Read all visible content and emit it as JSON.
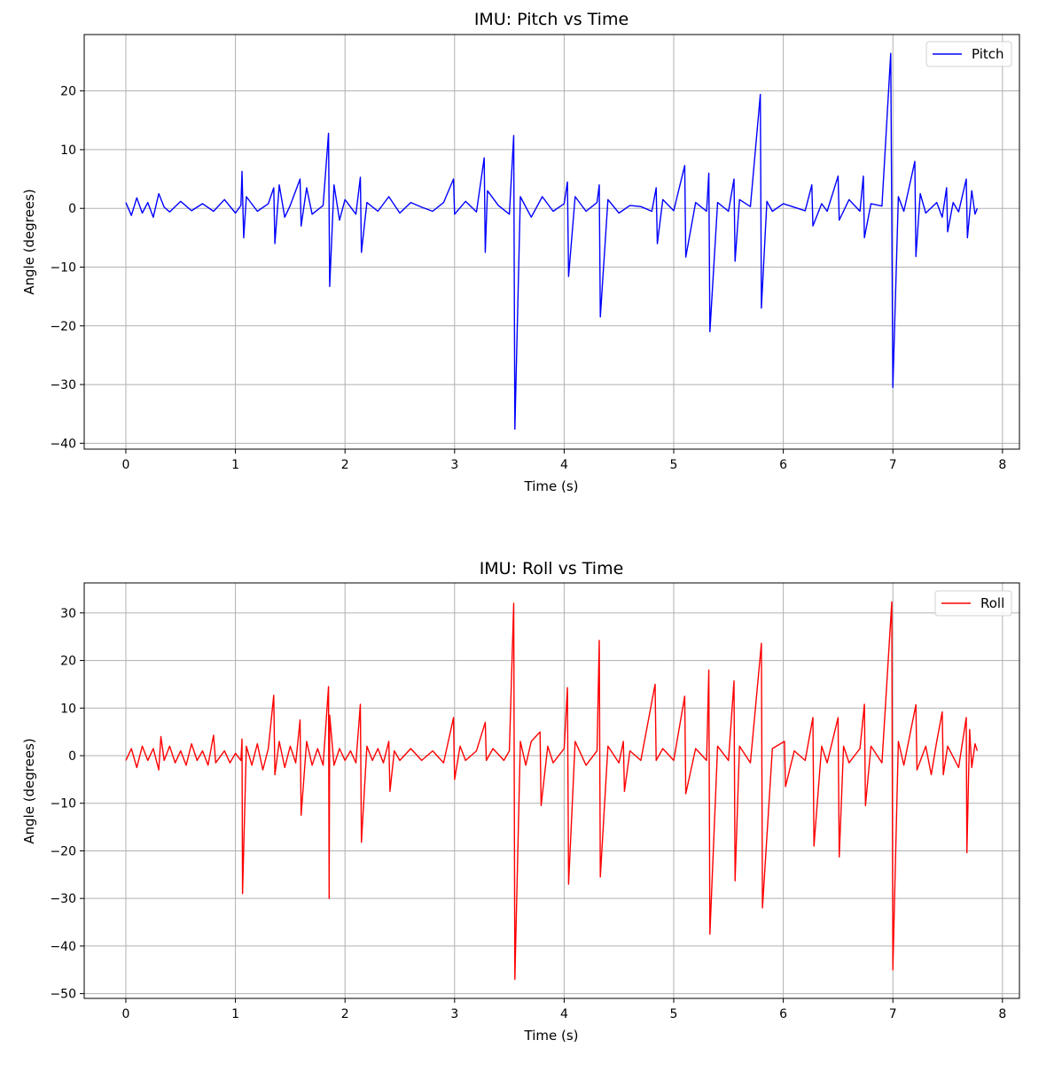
{
  "chart_data": [
    {
      "type": "line",
      "title": "IMU: Pitch vs Time",
      "xlabel": "Time (s)",
      "ylabel": "Angle (degrees)",
      "xlim": [
        -0.38,
        8.155
      ],
      "ylim": [
        -41,
        29.6
      ],
      "xticks": [
        0,
        1,
        2,
        3,
        4,
        5,
        6,
        7,
        8
      ],
      "yticks": [
        -40,
        -30,
        -20,
        -10,
        0,
        10,
        20
      ],
      "grid": true,
      "legend": "top-right",
      "series": [
        {
          "name": "Pitch",
          "color": "#0000ff",
          "points": [
            [
              0,
              1
            ],
            [
              0.05,
              -1.2
            ],
            [
              0.1,
              1.8
            ],
            [
              0.15,
              -0.8
            ],
            [
              0.2,
              1
            ],
            [
              0.25,
              -1.5
            ],
            [
              0.3,
              2.5
            ],
            [
              0.35,
              0.2
            ],
            [
              0.4,
              -0.6
            ],
            [
              0.5,
              1.2
            ],
            [
              0.6,
              -0.4
            ],
            [
              0.7,
              0.8
            ],
            [
              0.8,
              -0.5
            ],
            [
              0.9,
              1.5
            ],
            [
              1.0,
              -0.8
            ],
            [
              1.05,
              0.5
            ],
            [
              1.06,
              6.3
            ],
            [
              1.075,
              -5
            ],
            [
              1.1,
              2
            ],
            [
              1.2,
              -0.5
            ],
            [
              1.3,
              0.8
            ],
            [
              1.35,
              3.5
            ],
            [
              1.36,
              -6
            ],
            [
              1.4,
              4
            ],
            [
              1.45,
              -1.5
            ],
            [
              1.5,
              0.5
            ],
            [
              1.59,
              5
            ],
            [
              1.6,
              -3
            ],
            [
              1.65,
              3.5
            ],
            [
              1.7,
              -1
            ],
            [
              1.8,
              0.5
            ],
            [
              1.85,
              12.8
            ],
            [
              1.86,
              -13.3
            ],
            [
              1.9,
              4
            ],
            [
              1.95,
              -2
            ],
            [
              2.0,
              1.5
            ],
            [
              2.1,
              -1
            ],
            [
              2.14,
              5.3
            ],
            [
              2.15,
              -7.5
            ],
            [
              2.2,
              1
            ],
            [
              2.3,
              -0.5
            ],
            [
              2.4,
              2
            ],
            [
              2.5,
              -0.8
            ],
            [
              2.6,
              1
            ],
            [
              2.7,
              0.2
            ],
            [
              2.8,
              -0.5
            ],
            [
              2.9,
              1
            ],
            [
              2.99,
              5
            ],
            [
              3.0,
              -1
            ],
            [
              3.1,
              1.2
            ],
            [
              3.2,
              -0.6
            ],
            [
              3.27,
              8.6
            ],
            [
              3.28,
              -7.5
            ],
            [
              3.3,
              3
            ],
            [
              3.4,
              0.5
            ],
            [
              3.5,
              -1
            ],
            [
              3.54,
              12.4
            ],
            [
              3.55,
              -37.6
            ],
            [
              3.6,
              2
            ],
            [
              3.7,
              -1.5
            ],
            [
              3.8,
              2
            ],
            [
              3.9,
              -0.5
            ],
            [
              4.0,
              0.8
            ],
            [
              4.03,
              4.5
            ],
            [
              4.04,
              -11.6
            ],
            [
              4.1,
              2
            ],
            [
              4.2,
              -0.5
            ],
            [
              4.3,
              1
            ],
            [
              4.32,
              4
            ],
            [
              4.33,
              -18.5
            ],
            [
              4.4,
              1.5
            ],
            [
              4.5,
              -0.8
            ],
            [
              4.6,
              0.5
            ],
            [
              4.7,
              0.3
            ],
            [
              4.8,
              -0.5
            ],
            [
              4.84,
              3.5
            ],
            [
              4.85,
              -6
            ],
            [
              4.9,
              1.5
            ],
            [
              5.0,
              -0.4
            ],
            [
              5.1,
              7.3
            ],
            [
              5.11,
              -8.3
            ],
            [
              5.2,
              1
            ],
            [
              5.3,
              -0.5
            ],
            [
              5.32,
              6
            ],
            [
              5.33,
              -21
            ],
            [
              5.4,
              1
            ],
            [
              5.5,
              -0.5
            ],
            [
              5.55,
              5
            ],
            [
              5.56,
              -9
            ],
            [
              5.6,
              1.5
            ],
            [
              5.7,
              0.3
            ],
            [
              5.79,
              19.4
            ],
            [
              5.8,
              -17
            ],
            [
              5.85,
              1.2
            ],
            [
              5.9,
              -0.5
            ],
            [
              6.0,
              0.8
            ],
            [
              6.1,
              0.2
            ],
            [
              6.2,
              -0.4
            ],
            [
              6.26,
              4
            ],
            [
              6.27,
              -3
            ],
            [
              6.35,
              0.8
            ],
            [
              6.4,
              -0.5
            ],
            [
              6.5,
              5.5
            ],
            [
              6.51,
              -2
            ],
            [
              6.6,
              1.5
            ],
            [
              6.7,
              -0.5
            ],
            [
              6.73,
              5.5
            ],
            [
              6.74,
              -5
            ],
            [
              6.8,
              0.8
            ],
            [
              6.9,
              0.4
            ],
            [
              6.98,
              26.4
            ],
            [
              7.0,
              -30.5
            ],
            [
              7.05,
              2
            ],
            [
              7.1,
              -0.5
            ],
            [
              7.2,
              8
            ],
            [
              7.21,
              -8.2
            ],
            [
              7.25,
              2.5
            ],
            [
              7.3,
              -0.8
            ],
            [
              7.4,
              1
            ],
            [
              7.45,
              -1.5
            ],
            [
              7.49,
              3.5
            ],
            [
              7.5,
              -4
            ],
            [
              7.55,
              1
            ],
            [
              7.6,
              -0.6
            ],
            [
              7.67,
              5
            ],
            [
              7.68,
              -5
            ],
            [
              7.72,
              3
            ],
            [
              7.75,
              -1
            ],
            [
              7.77,
              0
            ]
          ]
        }
      ]
    },
    {
      "type": "line",
      "title": "IMU: Roll vs Time",
      "xlabel": "Time (s)",
      "ylabel": "Angle (degrees)",
      "xlim": [
        -0.38,
        8.155
      ],
      "ylim": [
        -51,
        36.3
      ],
      "xticks": [
        0,
        1,
        2,
        3,
        4,
        5,
        6,
        7,
        8
      ],
      "yticks": [
        -50,
        -40,
        -30,
        -20,
        -10,
        0,
        10,
        20,
        30
      ],
      "grid": true,
      "legend": "top-right",
      "series": [
        {
          "name": "Roll",
          "color": "#ff0000",
          "points": [
            [
              0,
              -1
            ],
            [
              0.05,
              1.5
            ],
            [
              0.1,
              -2.5
            ],
            [
              0.15,
              2
            ],
            [
              0.2,
              -1
            ],
            [
              0.25,
              1.5
            ],
            [
              0.3,
              -3
            ],
            [
              0.32,
              4
            ],
            [
              0.35,
              -1
            ],
            [
              0.4,
              2
            ],
            [
              0.45,
              -1.5
            ],
            [
              0.5,
              1
            ],
            [
              0.55,
              -2
            ],
            [
              0.6,
              2.5
            ],
            [
              0.65,
              -1
            ],
            [
              0.7,
              1
            ],
            [
              0.75,
              -2
            ],
            [
              0.8,
              4.3
            ],
            [
              0.82,
              -1.5
            ],
            [
              0.9,
              1
            ],
            [
              0.95,
              -1.5
            ],
            [
              1.0,
              0.5
            ],
            [
              1.05,
              -1
            ],
            [
              1.06,
              3.5
            ],
            [
              1.065,
              -29
            ],
            [
              1.1,
              2
            ],
            [
              1.15,
              -2
            ],
            [
              1.2,
              2.5
            ],
            [
              1.25,
              -3
            ],
            [
              1.3,
              1.5
            ],
            [
              1.35,
              12.7
            ],
            [
              1.36,
              -4
            ],
            [
              1.4,
              3
            ],
            [
              1.45,
              -2.5
            ],
            [
              1.5,
              2
            ],
            [
              1.55,
              -1.5
            ],
            [
              1.59,
              7.5
            ],
            [
              1.6,
              -12.5
            ],
            [
              1.65,
              3
            ],
            [
              1.7,
              -2
            ],
            [
              1.75,
              1.5
            ],
            [
              1.8,
              -2
            ],
            [
              1.85,
              14.5
            ],
            [
              1.855,
              -30
            ],
            [
              1.86,
              8.5
            ],
            [
              1.9,
              -2
            ],
            [
              1.95,
              1.5
            ],
            [
              2.0,
              -1
            ],
            [
              2.05,
              1
            ],
            [
              2.1,
              -1.5
            ],
            [
              2.14,
              10.8
            ],
            [
              2.15,
              -18.2
            ],
            [
              2.2,
              2
            ],
            [
              2.25,
              -1
            ],
            [
              2.3,
              1.5
            ],
            [
              2.35,
              -1.5
            ],
            [
              2.4,
              3
            ],
            [
              2.41,
              -7.5
            ],
            [
              2.45,
              1
            ],
            [
              2.5,
              -1
            ],
            [
              2.6,
              1.5
            ],
            [
              2.7,
              -1
            ],
            [
              2.8,
              1
            ],
            [
              2.9,
              -1.5
            ],
            [
              2.99,
              8
            ],
            [
              3.0,
              -5
            ],
            [
              3.05,
              2
            ],
            [
              3.1,
              -1
            ],
            [
              3.2,
              1
            ],
            [
              3.28,
              7
            ],
            [
              3.29,
              -1
            ],
            [
              3.35,
              1.5
            ],
            [
              3.45,
              -1
            ],
            [
              3.5,
              1
            ],
            [
              3.54,
              32
            ],
            [
              3.55,
              -47
            ],
            [
              3.6,
              3
            ],
            [
              3.65,
              -2
            ],
            [
              3.7,
              3
            ],
            [
              3.78,
              5
            ],
            [
              3.79,
              -10.5
            ],
            [
              3.85,
              2
            ],
            [
              3.9,
              -1.5
            ],
            [
              4.0,
              1.5
            ],
            [
              4.03,
              14.3
            ],
            [
              4.04,
              -27
            ],
            [
              4.1,
              3
            ],
            [
              4.2,
              -2
            ],
            [
              4.3,
              1
            ],
            [
              4.32,
              24.2
            ],
            [
              4.33,
              -25.5
            ],
            [
              4.4,
              2
            ],
            [
              4.5,
              -1.5
            ],
            [
              4.54,
              3
            ],
            [
              4.55,
              -7.5
            ],
            [
              4.6,
              1
            ],
            [
              4.7,
              -1
            ],
            [
              4.83,
              15
            ],
            [
              4.84,
              -1
            ],
            [
              4.9,
              1.5
            ],
            [
              5.0,
              -1
            ],
            [
              5.1,
              12.5
            ],
            [
              5.11,
              -8
            ],
            [
              5.2,
              1.5
            ],
            [
              5.3,
              -1
            ],
            [
              5.32,
              18
            ],
            [
              5.33,
              -37.5
            ],
            [
              5.4,
              2
            ],
            [
              5.5,
              -1
            ],
            [
              5.55,
              15.7
            ],
            [
              5.56,
              -26.3
            ],
            [
              5.6,
              2
            ],
            [
              5.7,
              -1.5
            ],
            [
              5.8,
              23.6
            ],
            [
              5.81,
              -32
            ],
            [
              5.9,
              1.5
            ],
            [
              6.01,
              3
            ],
            [
              6.02,
              -6.5
            ],
            [
              6.1,
              1
            ],
            [
              6.2,
              -1
            ],
            [
              6.27,
              8
            ],
            [
              6.28,
              -19
            ],
            [
              6.35,
              2
            ],
            [
              6.4,
              -1.5
            ],
            [
              6.5,
              8
            ],
            [
              6.51,
              -21.3
            ],
            [
              6.55,
              2
            ],
            [
              6.6,
              -1.5
            ],
            [
              6.7,
              1.5
            ],
            [
              6.74,
              10.8
            ],
            [
              6.75,
              -10.5
            ],
            [
              6.8,
              2
            ],
            [
              6.9,
              -1.5
            ],
            [
              6.99,
              32.3
            ],
            [
              7.0,
              -45
            ],
            [
              7.05,
              3
            ],
            [
              7.1,
              -2
            ],
            [
              7.21,
              10.7
            ],
            [
              7.22,
              -3
            ],
            [
              7.3,
              2
            ],
            [
              7.35,
              -4
            ],
            [
              7.4,
              3
            ],
            [
              7.45,
              9.2
            ],
            [
              7.46,
              -4
            ],
            [
              7.5,
              2
            ],
            [
              7.6,
              -2.5
            ],
            [
              7.67,
              8
            ],
            [
              7.675,
              -20.4
            ],
            [
              7.7,
              5.5
            ],
            [
              7.72,
              -2.5
            ],
            [
              7.75,
              2.5
            ],
            [
              7.77,
              1
            ]
          ]
        }
      ]
    }
  ]
}
